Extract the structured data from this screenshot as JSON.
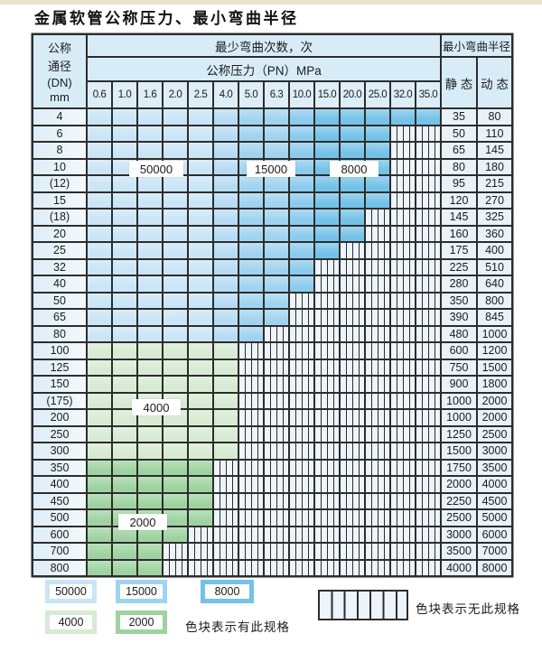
{
  "title": "金属软管公称压力、最小弯曲半径",
  "table": {
    "header": {
      "dn_lines": [
        "公称",
        "通径",
        "(DN)",
        "mm"
      ],
      "bend_times": "最少弯曲次数，次",
      "pressure": "公称压力（PN）MPa",
      "min_radius": "最小弯曲半径",
      "static": "静 态",
      "dynamic": "动 态",
      "pressures": [
        "0.6",
        "1.0",
        "1.6",
        "2.0",
        "2.5",
        "4.0",
        "5.0",
        "6.3",
        "10.0",
        "15.0",
        "20.0",
        "25.0",
        "32.0",
        "35.0"
      ]
    },
    "rows": [
      {
        "dn": "4",
        "static": "35",
        "dynamic": "80",
        "colored": 14,
        "zone": "blue"
      },
      {
        "dn": "6",
        "static": "50",
        "dynamic": "110",
        "colored": 12,
        "zone": "blue"
      },
      {
        "dn": "8",
        "static": "65",
        "dynamic": "145",
        "colored": 12,
        "zone": "blue"
      },
      {
        "dn": "10",
        "static": "80",
        "dynamic": "180",
        "colored": 12,
        "zone": "blue"
      },
      {
        "dn": "(12)",
        "static": "95",
        "dynamic": "215",
        "colored": 12,
        "zone": "blue"
      },
      {
        "dn": "15",
        "static": "120",
        "dynamic": "270",
        "colored": 12,
        "zone": "blue"
      },
      {
        "dn": "(18)",
        "static": "145",
        "dynamic": "325",
        "colored": 11,
        "zone": "blue"
      },
      {
        "dn": "20",
        "static": "160",
        "dynamic": "360",
        "colored": 11,
        "zone": "blue"
      },
      {
        "dn": "25",
        "static": "175",
        "dynamic": "400",
        "colored": 10,
        "zone": "blue"
      },
      {
        "dn": "32",
        "static": "225",
        "dynamic": "510",
        "colored": 9,
        "zone": "blue"
      },
      {
        "dn": "40",
        "static": "280",
        "dynamic": "640",
        "colored": 9,
        "zone": "blue"
      },
      {
        "dn": "50",
        "static": "350",
        "dynamic": "800",
        "colored": 8,
        "zone": "blue"
      },
      {
        "dn": "65",
        "static": "390",
        "dynamic": "845",
        "colored": 8,
        "zone": "blue"
      },
      {
        "dn": "80",
        "static": "480",
        "dynamic": "1000",
        "colored": 7,
        "zone": "blue"
      },
      {
        "dn": "100",
        "static": "600",
        "dynamic": "1200",
        "colored": 6,
        "zone": "green-light"
      },
      {
        "dn": "125",
        "static": "750",
        "dynamic": "1500",
        "colored": 6,
        "zone": "green-light"
      },
      {
        "dn": "150",
        "static": "900",
        "dynamic": "1800",
        "colored": 6,
        "zone": "green-light"
      },
      {
        "dn": "(175)",
        "static": "1000",
        "dynamic": "2000",
        "colored": 6,
        "zone": "green-light"
      },
      {
        "dn": "200",
        "static": "1000",
        "dynamic": "2000",
        "colored": 6,
        "zone": "green-light"
      },
      {
        "dn": "250",
        "static": "1250",
        "dynamic": "2500",
        "colored": 6,
        "zone": "green-light"
      },
      {
        "dn": "300",
        "static": "1500",
        "dynamic": "3000",
        "colored": 6,
        "zone": "green-light"
      },
      {
        "dn": "350",
        "static": "1750",
        "dynamic": "3500",
        "colored": 5,
        "zone": "green-mid"
      },
      {
        "dn": "400",
        "static": "2000",
        "dynamic": "4000",
        "colored": 5,
        "zone": "green-mid"
      },
      {
        "dn": "450",
        "static": "2250",
        "dynamic": "4500",
        "colored": 5,
        "zone": "green-mid"
      },
      {
        "dn": "500",
        "static": "2500",
        "dynamic": "5000",
        "colored": 5,
        "zone": "green-mid"
      },
      {
        "dn": "600",
        "static": "3000",
        "dynamic": "6000",
        "colored": 4,
        "zone": "green-mid"
      },
      {
        "dn": "700",
        "static": "3500",
        "dynamic": "7000",
        "colored": 3,
        "zone": "green-mid"
      },
      {
        "dn": "800",
        "static": "4000",
        "dynamic": "8000",
        "colored": 3,
        "zone": "green-mid"
      }
    ],
    "overlay_labels": [
      "50000",
      "15000",
      "8000",
      "4000",
      "2000"
    ]
  },
  "legend": {
    "items": [
      {
        "label": "50000",
        "color_key": "cycles_50000"
      },
      {
        "label": "15000",
        "color_key": "cycles_15000"
      },
      {
        "label": "8000",
        "color_key": "cycles_8000"
      },
      {
        "label": "4000",
        "color_key": "cycles_4000"
      },
      {
        "label": "2000",
        "color_key": "cycles_2000"
      }
    ],
    "has_spec_note": "色块表示有此规格",
    "no_spec_note": "色块表示无此规格"
  },
  "colors": {
    "cycles_50000": "#c9e5f6",
    "cycles_15000": "#a0d3ef",
    "cycles_8000": "#74c2e8",
    "cycles_blend_a": "#b6dcf3",
    "cycles_blend_b": "#8bcbed",
    "cycles_4000": "#d6ebd2",
    "cycles_2000": "#9ed3a0",
    "no_spec_bg": "#edf4fb",
    "grid_line": "#2d2d2d",
    "header_bg": "#d8ecf8"
  }
}
